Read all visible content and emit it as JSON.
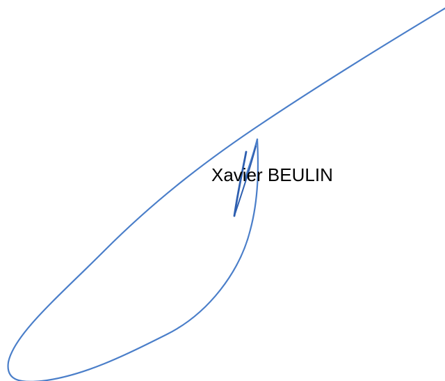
{
  "signer": {
    "name": "Xavier BEULIN"
  },
  "signature": {
    "ink_color": "#4a7ec9",
    "dark_ink_color": "#2e5fb0"
  }
}
